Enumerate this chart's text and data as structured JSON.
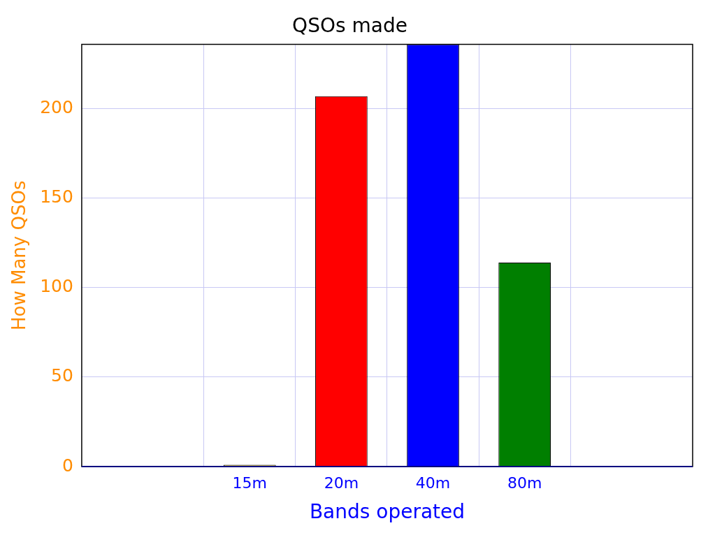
{
  "chart_data": {
    "type": "bar",
    "title": "QSOs made",
    "xlabel": "Bands operated",
    "ylabel": "How Many QSOs",
    "categories": [
      "15m",
      "20m",
      "40m",
      "80m"
    ],
    "values": [
      1,
      207,
      236,
      114
    ],
    "colors": [
      "#e0c020",
      "#ff0000",
      "#0000ff",
      "#007f00"
    ],
    "ylim": [
      0,
      236
    ],
    "yticks": [
      0,
      50,
      100,
      150,
      200
    ],
    "grid": true,
    "legend": false
  }
}
